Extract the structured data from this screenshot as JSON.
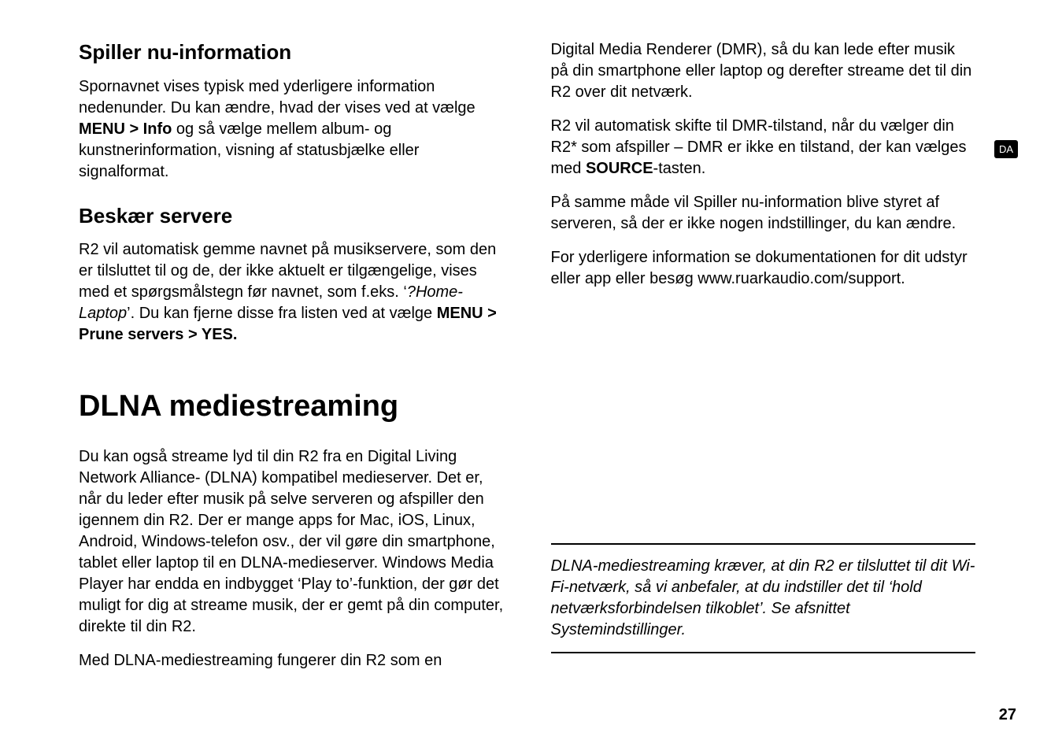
{
  "sideTab": "DA",
  "pageNumber": "27",
  "left": {
    "section1": {
      "heading": "Spiller nu-information",
      "p1_a": "Spornavnet vises typisk med yderligere information nedenunder. Du kan ændre, hvad der vises ved at vælge ",
      "p1_bold": "MENU > Info",
      "p1_b": " og så vælge mellem album- og kunstnerinformation, visning af statusbjælke eller signalformat."
    },
    "section2": {
      "heading": "Beskær servere",
      "p1_a": "R2 vil automatisk gemme navnet på musikservere, som den er tilsluttet til og de, der ikke aktuelt er tilgængelige, vises med et spørgsmålstegn før navnet, som f.eks. ‘",
      "p1_italic": "?Home-Laptop",
      "p1_b": "’. Du kan fjerne disse fra listen ved at vælge ",
      "p1_bold": "MENU > Prune servers > YES."
    },
    "section3": {
      "heading": "DLNA mediestreaming",
      "p1": "Du kan også streame lyd til din R2 fra en Digital Living Network Alliance- (DLNA) kompatibel medieserver. Det er, når du leder efter musik på selve serveren og afspiller den igennem din R2. Der er mange apps for Mac, iOS, Linux, Android, Windows-telefon osv., der vil gøre din smartphone, tablet eller laptop til en DLNA-medieserver. Windows Media Player har endda en indbygget ‘Play to’-funktion, der gør det muligt for dig at streame musik, der er gemt på din computer, direkte til din R2.",
      "p2": "Med DLNA-mediestreaming fungerer din R2 som en"
    }
  },
  "right": {
    "p1": "Digital Media Renderer (DMR), så du kan lede efter musik på din smartphone eller laptop og derefter streame det til din R2 over dit netværk.",
    "p2_a": "R2 vil automatisk skifte til DMR-tilstand, når du vælger din R2* som afspiller – DMR er ikke en tilstand, der kan vælges med ",
    "p2_bold": "SOURCE",
    "p2_b": "-tasten.",
    "p3": "På samme måde vil Spiller nu-information blive styret af serveren, så der er ikke nogen indstillinger, du kan ændre.",
    "p4": "For yderligere information se dokumentationen for dit udstyr eller app eller besøg www.ruarkaudio.com/support.",
    "note": "DLNA-mediestreaming kræver, at din R2 er tilsluttet til dit Wi-Fi-netværk, så vi anbefaler, at du indstiller det til ‘hold netværksforbindelsen tilkoblet’. Se afsnittet Systemindstillinger."
  }
}
